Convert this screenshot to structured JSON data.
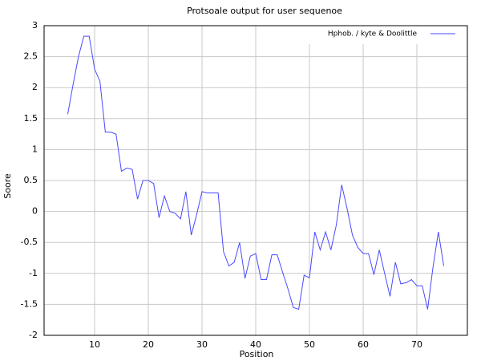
{
  "chart_data": {
    "type": "line",
    "title": "Protsoale output for user  sequenoe",
    "xlabel": "Position",
    "ylabel": "Soore",
    "x": [
      5,
      6,
      7,
      8,
      9,
      10,
      11,
      12,
      13,
      14,
      15,
      16,
      17,
      18,
      19,
      20,
      21,
      22,
      23,
      24,
      25,
      26,
      27,
      28,
      29,
      30,
      31,
      32,
      33,
      34,
      35,
      36,
      37,
      38,
      39,
      40,
      41,
      42,
      43,
      44,
      45,
      46,
      47,
      48,
      49,
      50,
      51,
      52,
      53,
      54,
      55,
      56,
      57,
      58,
      59,
      60,
      61,
      62,
      63,
      64,
      65,
      66,
      67,
      68,
      69,
      70,
      71,
      72,
      73,
      74,
      75
    ],
    "series": [
      {
        "name": "Hphob.    /  kyte   &   Doolittle",
        "color": "#4a4aff",
        "values": [
          1.57,
          2.05,
          2.5,
          2.83,
          2.83,
          2.3,
          2.1,
          1.28,
          1.28,
          1.25,
          0.65,
          0.7,
          0.68,
          0.2,
          0.5,
          0.5,
          0.45,
          -0.1,
          0.25,
          0.0,
          -0.03,
          -0.12,
          0.32,
          -0.38,
          -0.05,
          0.32,
          0.3,
          0.3,
          0.3,
          -0.65,
          -0.88,
          -0.82,
          -0.5,
          -1.08,
          -0.72,
          -0.68,
          -1.1,
          -1.1,
          -0.7,
          -0.7,
          -0.98,
          -1.25,
          -1.55,
          -1.58,
          -1.03,
          -1.07,
          -0.33,
          -0.62,
          -0.33,
          -0.62,
          -0.22,
          0.43,
          0.05,
          -0.38,
          -0.58,
          -0.68,
          -0.68,
          -1.02,
          -0.62,
          -1.0,
          -1.37,
          -0.82,
          -1.17,
          -1.15,
          -1.1,
          -1.2,
          -1.2,
          -1.58,
          -0.9,
          -0.33,
          -0.88
        ]
      }
    ],
    "xlim": [
      0.6,
      79.4
    ],
    "xticks": [
      10,
      20,
      30,
      40,
      50,
      60,
      70
    ],
    "ylim": [
      -2,
      3
    ],
    "yticks": [
      -2,
      -1.5,
      -1,
      -0.5,
      0,
      0.5,
      1,
      1.5,
      2,
      2.5,
      3
    ],
    "grid": true,
    "legend": "top-right"
  }
}
